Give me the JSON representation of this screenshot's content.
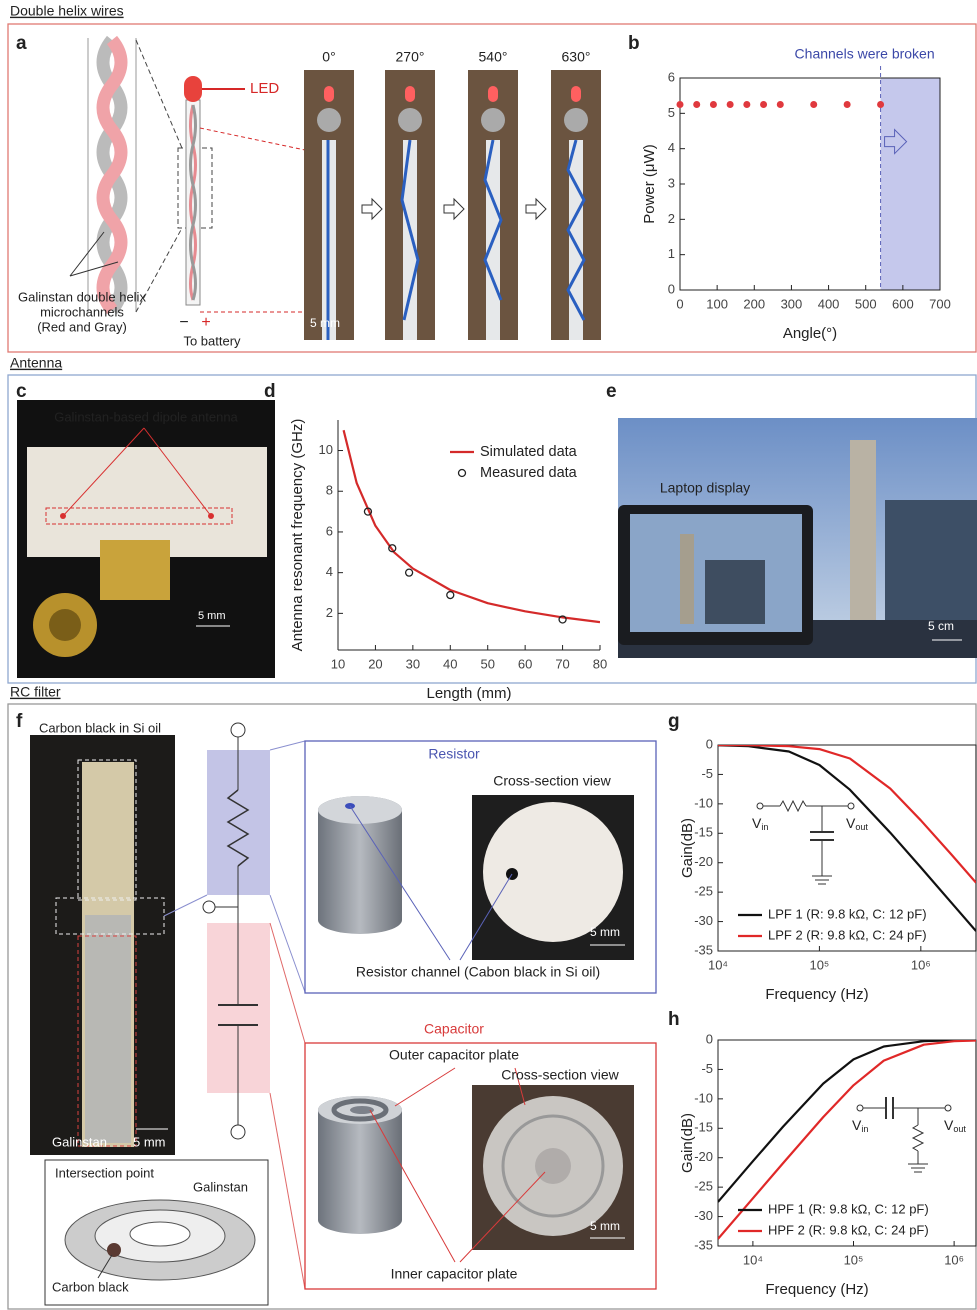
{
  "sections": [
    "Double helix wires",
    "Antenna",
    "RC filter"
  ],
  "panels": [
    "a",
    "b",
    "c",
    "d",
    "e",
    "f",
    "g",
    "h"
  ],
  "panel_a": {
    "led": "LED",
    "channels": [
      "Galinstan double helix",
      "microchannels",
      "(Red and Gray)"
    ],
    "polarity": [
      "−",
      "+"
    ],
    "battery": "To battery",
    "angles": [
      "0°",
      "270°",
      "540°",
      "630°"
    ],
    "scale": "5 mm"
  },
  "panel_c": {
    "label": "Galinstan-based dipole antenna",
    "scale": "5 mm"
  },
  "panel_e": {
    "label": "Laptop display",
    "scale": "5 cm"
  },
  "panel_f": {
    "top": "Carbon black in Si oil",
    "resistor": "Resistor",
    "resistor_view": "Cross-section view",
    "resistor_scale": "5 mm",
    "resistor_channel": "Resistor channel  (Cabon black in Si oil)",
    "capacitor": "Capacitor",
    "outer_plate": "Outer capacitor plate",
    "capacitor_view": "Cross-section view",
    "capacitor_scale": "5 mm",
    "inner_plate": "Inner capacitor plate",
    "galinstan": "Galinstan",
    "photo_scale": "5 mm",
    "intersection": "Intersection point",
    "inset_galinstan": "Galinstan",
    "carbon_black": "Carbon black"
  },
  "chart_data": [
    {
      "type": "scatter",
      "annotation": "Channels were broken",
      "annotation_color": "#3b48a8",
      "x_label": "Angle(°)",
      "y_label": "Power (μW)",
      "xlim": [
        0,
        700
      ],
      "ylim": [
        0,
        6
      ],
      "xticks": [
        0,
        100,
        200,
        300,
        400,
        500,
        600,
        700
      ],
      "yticks": [
        0,
        1,
        2,
        3,
        4,
        5,
        6
      ],
      "frame": true,
      "broken_at": 540,
      "shade_color": "#c5c8ec",
      "x": [
        0,
        45,
        90,
        135,
        180,
        225,
        270,
        360,
        450,
        540
      ],
      "series": [
        {
          "color": "#e0393e",
          "values": [
            5.25,
            5.25,
            5.25,
            5.25,
            5.25,
            5.25,
            5.25,
            5.25,
            5.25,
            5.25
          ]
        }
      ]
    },
    {
      "type": "line",
      "x_label": "Length (mm)",
      "y_label": "Antenna resonant frequency (GHz)",
      "xlim": [
        10,
        80
      ],
      "ylim": [
        0.2,
        11.5
      ],
      "xticks": [
        10,
        20,
        30,
        40,
        50,
        60,
        70,
        80
      ],
      "yticks": [
        2,
        4,
        6,
        8,
        10
      ],
      "frame": false,
      "legend": "upper right",
      "series": [
        {
          "name": "Simulated data",
          "color": "#d42a2a",
          "mode": "line",
          "x": [
            11.5,
            15,
            20,
            25,
            30,
            40,
            50,
            60,
            70,
            80
          ],
          "values": [
            11,
            8.4,
            6.3,
            5.0,
            4.2,
            3.15,
            2.5,
            2.1,
            1.8,
            1.57
          ]
        },
        {
          "name": "Measured data",
          "color": "#222222",
          "mode": "markers",
          "x": [
            18,
            24.5,
            29,
            40,
            70
          ],
          "values": [
            7.0,
            5.2,
            4.0,
            2.9,
            1.7
          ]
        }
      ]
    },
    {
      "type": "line",
      "x_label": "Frequency (Hz)",
      "y_label": "Gain(dB)",
      "log_x": true,
      "frame": true,
      "legend": "lower left",
      "xlim": [
        10000,
        3500000
      ],
      "ylim": [
        -35,
        0
      ],
      "xticks": [
        {
          "value": 10000,
          "label": "10⁴"
        },
        {
          "value": 100000,
          "label": "10⁵"
        },
        {
          "value": 1000000,
          "label": "10⁶"
        }
      ],
      "yticks": [
        0,
        -5,
        -10,
        -15,
        -20,
        -25,
        -30,
        -35
      ],
      "circuit": [
        {
          "main": "V",
          "sub": "in"
        },
        {
          "main": "V",
          "sub": "out"
        }
      ],
      "x": [
        10000,
        20000,
        50000,
        100000,
        200000,
        500000,
        1000000,
        2000000,
        3500000
      ],
      "series": [
        {
          "name": "LPF 1 (R: 9.8 kΩ, C: 12 pF)",
          "color": "#111111",
          "mode": "line",
          "values": [
            -0.05,
            -0.2,
            -1.1,
            -3.4,
            -7.6,
            -14.9,
            -20.8,
            -26.8,
            -31.6
          ]
        },
        {
          "name": "LPF 2 (R: 9.8 kΩ, C: 24 pF)",
          "color": "#e02828",
          "mode": "line",
          "values": [
            0,
            -0.03,
            -0.2,
            -0.7,
            -2.3,
            -7.4,
            -12.8,
            -18.6,
            -23.4
          ]
        }
      ]
    },
    {
      "type": "line",
      "x_label": "Frequency (Hz)",
      "y_label": "Gain(dB)",
      "log_x": true,
      "frame": true,
      "legend": "lower left",
      "xlim": [
        4500,
        1650000
      ],
      "ylim": [
        -35,
        0
      ],
      "xticks": [
        {
          "value": 10000,
          "label": "10⁴"
        },
        {
          "value": 100000,
          "label": "10⁵"
        },
        {
          "value": 1000000,
          "label": "10⁶"
        }
      ],
      "yticks": [
        0,
        -5,
        -10,
        -15,
        -20,
        -25,
        -30,
        -35
      ],
      "circuit": [
        {
          "main": "V",
          "sub": "in"
        },
        {
          "main": "V",
          "sub": "out"
        }
      ],
      "x": [
        4500,
        10000,
        20000,
        50000,
        100000,
        200000,
        500000,
        1000000,
        1650000
      ],
      "series": [
        {
          "name": "HPF 1 (R: 9.8 kΩ, C: 12 pF)",
          "color": "#111111",
          "mode": "line",
          "values": [
            -27.5,
            -20.6,
            -14.7,
            -7.4,
            -3.3,
            -1.1,
            -0.2,
            -0.05,
            0
          ]
        },
        {
          "name": "HPF 2 (R: 9.8 kΩ, C: 24 pF)",
          "color": "#e02828",
          "mode": "line",
          "values": [
            -33.8,
            -26.9,
            -20.9,
            -13.1,
            -7.7,
            -3.5,
            -0.8,
            -0.2,
            -0.08
          ]
        }
      ]
    }
  ]
}
